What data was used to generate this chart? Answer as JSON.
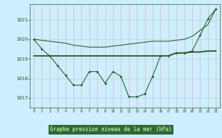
{
  "title": "Graphe pression niveau de la mer (hPa)",
  "bg_color": "#cceeff",
  "plot_bg": "#cceeff",
  "grid_v_color": "#e8b8b8",
  "grid_h_color": "#aadddd",
  "line_color": "#2d5a2d",
  "label_bg": "#336633",
  "label_fg": "#ccffcc",
  "xlim": [
    -0.5,
    23.5
  ],
  "ylim": [
    1016.5,
    1021.8
  ],
  "yticks": [
    1017,
    1018,
    1019,
    1020,
    1021
  ],
  "xticks": [
    0,
    1,
    2,
    3,
    4,
    5,
    6,
    7,
    8,
    9,
    10,
    11,
    12,
    13,
    14,
    15,
    16,
    17,
    18,
    19,
    20,
    21,
    22,
    23
  ],
  "hours": [
    0,
    1,
    2,
    3,
    4,
    5,
    6,
    7,
    8,
    9,
    10,
    11,
    12,
    13,
    14,
    15,
    16,
    17,
    18,
    19,
    20,
    21,
    22,
    23
  ],
  "line1": [
    1020.0,
    1019.5,
    1019.15,
    1018.65,
    1018.15,
    1017.65,
    1017.65,
    1018.35,
    1018.35,
    1017.75,
    1018.35,
    1018.1,
    1017.05,
    1017.05,
    1017.2,
    1018.1,
    1019.15,
    1019.15,
    1019.3,
    1019.3,
    1019.4,
    1020.2,
    1021.05,
    1021.55
  ],
  "line2": [
    1019.15,
    1019.15,
    1019.15,
    1019.15,
    1019.15,
    1019.15,
    1019.15,
    1019.15,
    1019.15,
    1019.15,
    1019.15,
    1019.15,
    1019.15,
    1019.15,
    1019.15,
    1019.15,
    1019.15,
    1019.15,
    1019.3,
    1019.3,
    1019.35,
    1019.35,
    1019.4,
    1019.4
  ],
  "line3": [
    1020.0,
    1019.95,
    1019.9,
    1019.85,
    1019.8,
    1019.7,
    1019.65,
    1019.6,
    1019.6,
    1019.6,
    1019.65,
    1019.7,
    1019.75,
    1019.8,
    1019.85,
    1019.9,
    1019.9,
    1019.9,
    1019.95,
    1020.0,
    1020.15,
    1020.45,
    1020.75,
    1021.55
  ]
}
